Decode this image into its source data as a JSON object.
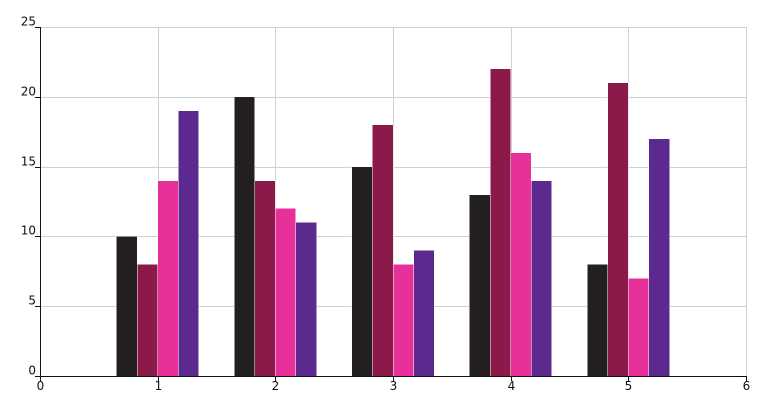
{
  "chart_data": {
    "type": "bar",
    "title": "",
    "xlabel": "",
    "ylabel": "",
    "x": [
      1,
      2,
      3,
      4,
      5
    ],
    "xlim": [
      0,
      6
    ],
    "ylim": [
      0,
      25
    ],
    "xticks": [
      0,
      1,
      2,
      3,
      4,
      5,
      6
    ],
    "yticks": [
      0,
      5,
      10,
      15,
      20,
      25
    ],
    "grid": true,
    "legend": "none",
    "series": [
      {
        "values": [
          10,
          20,
          15,
          13,
          8
        ],
        "color": "#231f20"
      },
      {
        "values": [
          8,
          14,
          18,
          22,
          21
        ],
        "color": "#8b1a4a"
      },
      {
        "values": [
          14,
          12,
          8,
          16,
          7
        ],
        "color": "#e8309a"
      },
      {
        "values": [
          19,
          11,
          9,
          14,
          17
        ],
        "color": "#5c2a8f"
      }
    ]
  }
}
